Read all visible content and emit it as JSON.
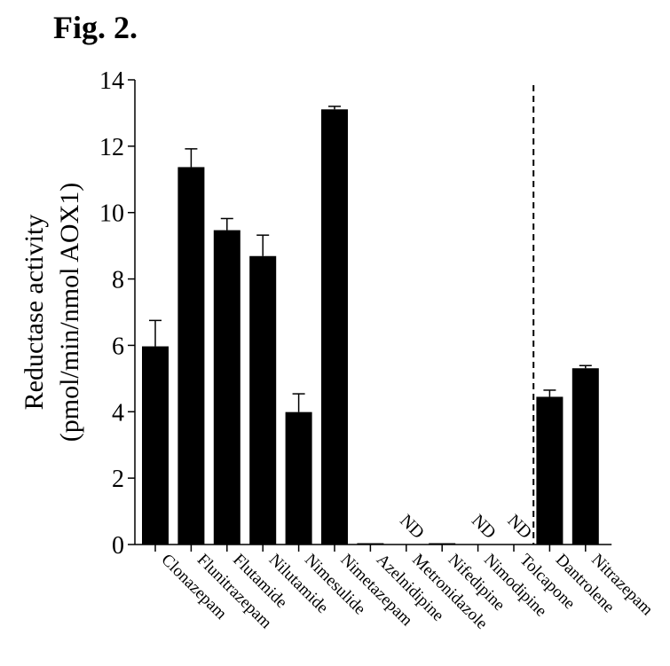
{
  "figure_label": "Fig. 2.",
  "chart_data": {
    "type": "bar",
    "ylabel_line1": "Reductase activity",
    "ylabel_line2": "(pmol/min/nmol AOX1)",
    "ylim": [
      0,
      14
    ],
    "yticks": [
      0,
      2,
      4,
      6,
      8,
      10,
      12,
      14
    ],
    "categories": [
      "Clonazepam",
      "Flunitrazepam",
      "Flutamide",
      "Nilutamide",
      "Nimesulide",
      "Nimetazepam",
      "Azelnidipine",
      "Metronidazole",
      "Nifedipine",
      "Nimodipine",
      "Tolcapone",
      "Dantrolene",
      "Nitrazepam"
    ],
    "values": [
      5.97,
      11.37,
      9.47,
      8.69,
      3.99,
      13.11,
      0.03,
      0.0,
      0.04,
      0.0,
      0.0,
      4.45,
      5.31
    ],
    "errors": [
      0.78,
      0.55,
      0.35,
      0.63,
      0.55,
      0.09,
      0.0,
      0.0,
      0.0,
      0.0,
      0.0,
      0.2,
      0.08
    ],
    "annotations": [
      "",
      "",
      "",
      "",
      "",
      "",
      "",
      "ND",
      "",
      "ND",
      "ND",
      "",
      ""
    ],
    "divider_after_index": 10,
    "bar_color": "#000000"
  }
}
